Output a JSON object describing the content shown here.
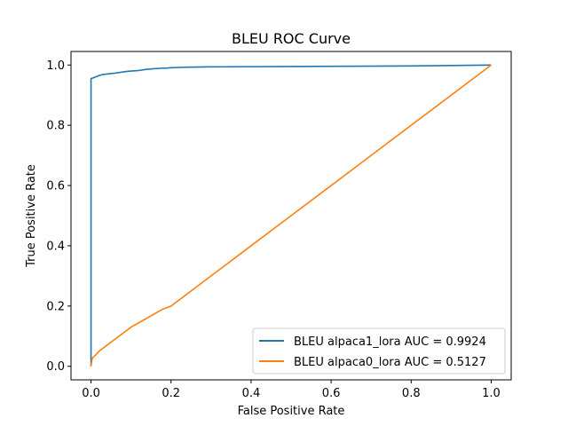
{
  "chart_data": {
    "type": "line",
    "title": "BLEU ROC Curve",
    "xlabel": "False Positive Rate",
    "ylabel": "True Positive Rate",
    "xlim": [
      -0.05,
      1.05
    ],
    "ylim": [
      -0.045,
      1.045
    ],
    "xticks": [
      0.0,
      0.2,
      0.4,
      0.6,
      0.8,
      1.0
    ],
    "yticks": [
      0.0,
      0.2,
      0.4,
      0.6,
      0.8,
      1.0
    ],
    "xtick_labels": [
      "0.0",
      "0.2",
      "0.4",
      "0.6",
      "0.8",
      "1.0"
    ],
    "ytick_labels": [
      "0.0",
      "0.2",
      "0.4",
      "0.6",
      "0.8",
      "1.0"
    ],
    "grid": false,
    "legend_position": "lower-right",
    "series": [
      {
        "name": "BLEU alpaca1_lora AUC = 0.9924",
        "color": "#1f77b4",
        "x": [
          0.0,
          0.0,
          0.0,
          0.0,
          0.005,
          0.01,
          0.015,
          0.02,
          0.025,
          0.03,
          0.04,
          0.05,
          0.06,
          0.07,
          0.08,
          0.09,
          0.1,
          0.12,
          0.13,
          0.14,
          0.15,
          0.17,
          0.19,
          0.2,
          0.22,
          0.24,
          0.3,
          0.5,
          0.8,
          1.0
        ],
        "y": [
          0.0,
          0.02,
          0.9,
          0.955,
          0.957,
          0.96,
          0.962,
          0.965,
          0.967,
          0.969,
          0.97,
          0.972,
          0.973,
          0.975,
          0.977,
          0.979,
          0.98,
          0.982,
          0.984,
          0.986,
          0.987,
          0.989,
          0.99,
          0.991,
          0.992,
          0.993,
          0.994,
          0.995,
          0.997,
          1.0
        ]
      },
      {
        "name": "BLEU alpaca0_lora AUC = 0.5127",
        "color": "#ff7f0e",
        "x": [
          0.0,
          0.002,
          0.005,
          0.01,
          0.02,
          0.03,
          0.05,
          0.07,
          0.08,
          0.1,
          0.12,
          0.14,
          0.16,
          0.18,
          0.2,
          0.3,
          0.4,
          0.5,
          0.6,
          0.7,
          0.8,
          0.9,
          1.0
        ],
        "y": [
          0.0,
          0.02,
          0.03,
          0.035,
          0.05,
          0.06,
          0.08,
          0.1,
          0.11,
          0.13,
          0.145,
          0.16,
          0.175,
          0.19,
          0.2,
          0.3,
          0.4,
          0.5,
          0.6,
          0.7,
          0.8,
          0.9,
          1.0
        ]
      }
    ]
  }
}
